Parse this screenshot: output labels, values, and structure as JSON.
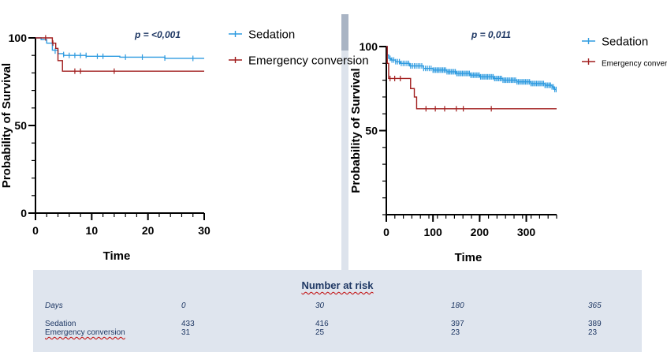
{
  "colors": {
    "sedation": "#2e9be0",
    "emergency": "#a11d1d"
  },
  "chart_data": [
    {
      "type": "line",
      "xlabel": "Time",
      "ylabel": "Probability of Survival",
      "xlim": [
        0,
        30
      ],
      "ylim": [
        0,
        100
      ],
      "xticks": [
        0,
        10,
        20,
        30
      ],
      "yticks": [
        0,
        50,
        100
      ],
      "annotation": "p = <0,001",
      "legend_position": "top-right",
      "series": [
        {
          "name": "Sedation",
          "color": "#2e9be0",
          "steps": [
            [
              0,
              100
            ],
            [
              1,
              99
            ],
            [
              2,
              97
            ],
            [
              3,
              93
            ],
            [
              4,
              91
            ],
            [
              5,
              90
            ],
            [
              8,
              90
            ],
            [
              9,
              89.5
            ],
            [
              14,
              89.5
            ],
            [
              15,
              89
            ],
            [
              22,
              89
            ],
            [
              23,
              88.3
            ],
            [
              30,
              88.3
            ]
          ],
          "censored": [
            [
              3.5,
              92.5
            ],
            [
              5,
              90.5
            ],
            [
              6,
              90
            ],
            [
              7,
              90
            ],
            [
              8,
              90
            ],
            [
              9,
              90
            ],
            [
              11,
              89.5
            ],
            [
              12,
              89.5
            ],
            [
              16,
              89
            ],
            [
              19,
              89
            ],
            [
              23,
              88.5
            ],
            [
              28,
              88.3
            ]
          ]
        },
        {
          "name": "Emergency conversion",
          "color": "#a11d1d",
          "steps": [
            [
              0,
              100
            ],
            [
              3,
              97
            ],
            [
              3.6,
              94
            ],
            [
              4,
              87
            ],
            [
              4.8,
              81
            ],
            [
              30,
              81
            ]
          ],
          "censored": [
            [
              1.8,
              100
            ],
            [
              3.1,
              97
            ],
            [
              7,
              81
            ],
            [
              8,
              81
            ],
            [
              14,
              81
            ]
          ]
        }
      ]
    },
    {
      "type": "line",
      "xlabel": "Time",
      "ylabel": "Probability of Survival",
      "xlim": [
        0,
        365
      ],
      "ylim": [
        0,
        100
      ],
      "xticks": [
        0,
        100,
        200,
        300
      ],
      "yticks": [
        50,
        100
      ],
      "annotation": "p = 0,011",
      "legend_position": "top-right",
      "series": [
        {
          "name": "Sedation",
          "color": "#2e9be0",
          "steps": [
            [
              0,
              100
            ],
            [
              2,
              95
            ],
            [
              5,
              93
            ],
            [
              10,
              92
            ],
            [
              20,
              91
            ],
            [
              30,
              90
            ],
            [
              50,
              88.5
            ],
            [
              80,
              87
            ],
            [
              100,
              86
            ],
            [
              130,
              85
            ],
            [
              150,
              84
            ],
            [
              180,
              83
            ],
            [
              200,
              82
            ],
            [
              230,
              81
            ],
            [
              250,
              80
            ],
            [
              280,
              79
            ],
            [
              310,
              78
            ],
            [
              340,
              77
            ],
            [
              355,
              76
            ],
            [
              360,
              74.5
            ],
            [
              365,
              74.5
            ]
          ],
          "censored": "dense"
        },
        {
          "name": "Emergency conversion",
          "color": "#a11d1d",
          "steps": [
            [
              0,
              100
            ],
            [
              2,
              90
            ],
            [
              5,
              81
            ],
            [
              50,
              81
            ],
            [
              52,
              75
            ],
            [
              60,
              70
            ],
            [
              65,
              63
            ],
            [
              365,
              63
            ]
          ],
          "censored": [
            [
              8,
              81
            ],
            [
              18,
              81
            ],
            [
              30,
              81
            ],
            [
              85,
              63
            ],
            [
              105,
              63
            ],
            [
              125,
              63
            ],
            [
              150,
              63
            ],
            [
              165,
              63
            ],
            [
              225,
              63
            ]
          ]
        }
      ]
    }
  ],
  "risk_table": {
    "title": "Number at risk",
    "days_label": "Days",
    "days": [
      "0",
      "30",
      "180",
      "365"
    ],
    "rows": [
      {
        "label": "Sedation",
        "values": [
          "433",
          "416",
          "397",
          "389"
        ]
      },
      {
        "label": "Emergency conversion",
        "values": [
          "31",
          "25",
          "23",
          "23"
        ]
      }
    ]
  }
}
